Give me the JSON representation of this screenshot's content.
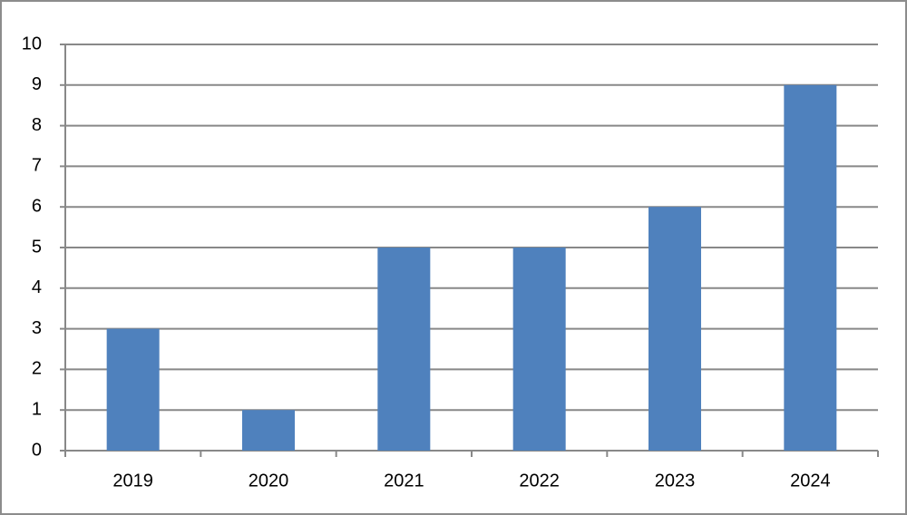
{
  "chart_data": {
    "type": "bar",
    "categories": [
      "2019",
      "2020",
      "2021",
      "2022",
      "2023",
      "2024"
    ],
    "values": [
      3,
      1,
      5,
      5,
      6,
      9
    ],
    "color": "#4f81bd",
    "ylim": [
      0,
      10
    ],
    "yticks": [
      0,
      1,
      2,
      3,
      4,
      5,
      6,
      7,
      8,
      9,
      10
    ],
    "grid": true
  }
}
